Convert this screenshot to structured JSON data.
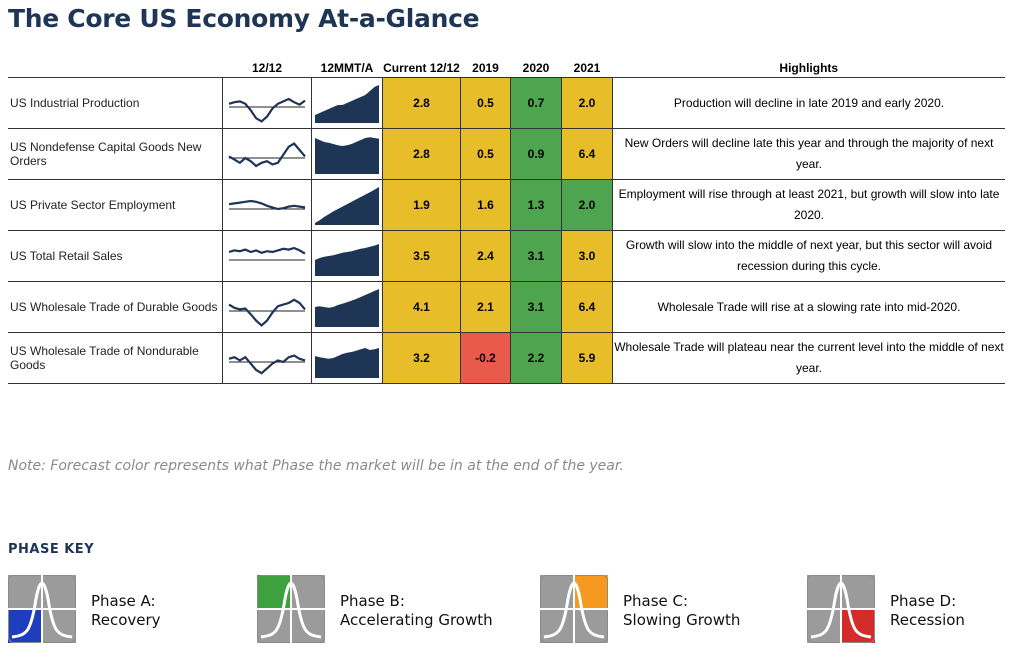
{
  "title": "The Core US Economy At-a-Glance",
  "note": "Note: Forecast color represents what Phase the market will be in at the end of the year.",
  "columns": {
    "name": "",
    "spark1": "12/12",
    "spark2": "12MMT/A",
    "current": "Current 12/12",
    "y2019": "2019",
    "y2020": "2020",
    "y2021": "2021",
    "highlights": "Highlights"
  },
  "colors": {
    "title": "#1e3556",
    "yellow": "#e8bd2a",
    "green": "#4fa44f",
    "red": "#ea5a4a",
    "blue": "#1d3fbf",
    "orange": "#f59a1f",
    "recession_red": "#d42b2b",
    "spark": "#1e3556"
  },
  "chart_data": {
    "type": "table",
    "title": "The Core US Economy At-a-Glance",
    "rows": [
      {
        "indicator": "US Industrial Production",
        "current": "2.8",
        "y2019": "0.5",
        "y2020": "0.7",
        "y2021": "2.0",
        "phases": {
          "current": "C",
          "y2019": "C",
          "y2020": "B",
          "y2021": "C"
        },
        "highlight": "Production will decline in late 2019 and early 2020.",
        "spark1": [
          0.2,
          0.3,
          0.35,
          0.2,
          -0.2,
          -0.7,
          -0.9,
          -0.6,
          -0.1,
          0.2,
          0.35,
          0.5,
          0.3,
          0.15,
          0.4
        ],
        "spark2": [
          0.2,
          0.25,
          0.3,
          0.35,
          0.4,
          0.45,
          0.45,
          0.5,
          0.55,
          0.6,
          0.65,
          0.7,
          0.8,
          0.9,
          0.95
        ]
      },
      {
        "indicator": "US Nondefense Capital Goods New Orders",
        "current": "2.8",
        "y2019": "0.5",
        "y2020": "0.9",
        "y2021": "6.4",
        "phases": {
          "current": "C",
          "y2019": "C",
          "y2020": "B",
          "y2021": "C"
        },
        "highlight": "New Orders will decline late this year and through the majority of next year.",
        "spark1": [
          0.1,
          -0.1,
          -0.3,
          0.0,
          -0.2,
          -0.5,
          -0.3,
          -0.2,
          -0.4,
          -0.3,
          0.2,
          0.7,
          0.9,
          0.5,
          0.1
        ],
        "spark2": [
          0.9,
          0.85,
          0.8,
          0.78,
          0.75,
          0.72,
          0.7,
          0.72,
          0.75,
          0.8,
          0.85,
          0.9,
          0.92,
          0.9,
          0.88
        ]
      },
      {
        "indicator": "US Private Sector Employment",
        "current": "1.9",
        "y2019": "1.6",
        "y2020": "1.3",
        "y2021": "2.0",
        "phases": {
          "current": "C",
          "y2019": "C",
          "y2020": "B",
          "y2021": "B"
        },
        "highlight": "Employment will rise through at least 2021, but growth will slow into late 2020.",
        "spark1": [
          0.3,
          0.35,
          0.4,
          0.45,
          0.5,
          0.45,
          0.35,
          0.2,
          0.1,
          0.0,
          0.05,
          0.15,
          0.2,
          0.15,
          0.1
        ],
        "spark2": [
          0.05,
          0.12,
          0.2,
          0.27,
          0.34,
          0.4,
          0.46,
          0.52,
          0.58,
          0.64,
          0.7,
          0.76,
          0.82,
          0.88,
          0.95
        ]
      },
      {
        "indicator": "US Total Retail Sales",
        "current": "3.5",
        "y2019": "2.4",
        "y2020": "3.1",
        "y2021": "3.0",
        "phases": {
          "current": "C",
          "y2019": "C",
          "y2020": "B",
          "y2021": "C"
        },
        "highlight": "Growth will slow into the middle of next year, but this sector will avoid recession during this cycle.",
        "spark1": [
          0.5,
          0.6,
          0.55,
          0.65,
          0.5,
          0.6,
          0.45,
          0.55,
          0.5,
          0.6,
          0.7,
          0.65,
          0.75,
          0.6,
          0.4
        ],
        "spark2": [
          0.4,
          0.45,
          0.48,
          0.5,
          0.52,
          0.55,
          0.58,
          0.6,
          0.62,
          0.65,
          0.68,
          0.7,
          0.73,
          0.76,
          0.8
        ]
      },
      {
        "indicator": "US Wholesale Trade of Durable Goods",
        "current": "4.1",
        "y2019": "2.1",
        "y2020": "3.1",
        "y2021": "6.4",
        "phases": {
          "current": "C",
          "y2019": "C",
          "y2020": "B",
          "y2021": "C"
        },
        "highlight": "Wholesale Trade will rise at a slowing rate into mid-2020.",
        "spark1": [
          0.4,
          0.2,
          0.1,
          0.15,
          -0.2,
          -0.6,
          -0.9,
          -0.6,
          -0.1,
          0.3,
          0.4,
          0.5,
          0.7,
          0.5,
          0.1
        ],
        "spark2": [
          0.5,
          0.52,
          0.5,
          0.48,
          0.5,
          0.55,
          0.58,
          0.62,
          0.66,
          0.7,
          0.75,
          0.8,
          0.85,
          0.9,
          0.95
        ]
      },
      {
        "indicator": "US Wholesale Trade of Nondurable Goods",
        "current": "3.2",
        "y2019": "-0.2",
        "y2020": "2.2",
        "y2021": "5.9",
        "phases": {
          "current": "C",
          "y2019": "D",
          "y2020": "B",
          "y2021": "C"
        },
        "highlight": "Wholesale Trade will plateau near the current level into the middle of next year.",
        "spark1": [
          0.2,
          0.3,
          0.1,
          0.3,
          -0.1,
          -0.5,
          -0.7,
          -0.4,
          -0.1,
          0.1,
          0.0,
          0.3,
          0.4,
          0.2,
          0.1
        ],
        "spark2": [
          0.55,
          0.52,
          0.5,
          0.48,
          0.5,
          0.55,
          0.6,
          0.63,
          0.65,
          0.68,
          0.72,
          0.75,
          0.7,
          0.72,
          0.75
        ]
      }
    ]
  },
  "phase_key": {
    "title": "PHASE KEY",
    "items": [
      {
        "line1": "Phase A:",
        "line2": "Recovery",
        "quadrant": "bottom-left",
        "color": "#1d3fbf"
      },
      {
        "line1": "Phase B:",
        "line2": "Accelerating Growth",
        "quadrant": "top-left",
        "color": "#3da13d"
      },
      {
        "line1": "Phase C:",
        "line2": "Slowing Growth",
        "quadrant": "top-right",
        "color": "#f59a1f"
      },
      {
        "line1": "Phase D:",
        "line2": "Recession",
        "quadrant": "bottom-right",
        "color": "#d42b2b"
      }
    ]
  }
}
